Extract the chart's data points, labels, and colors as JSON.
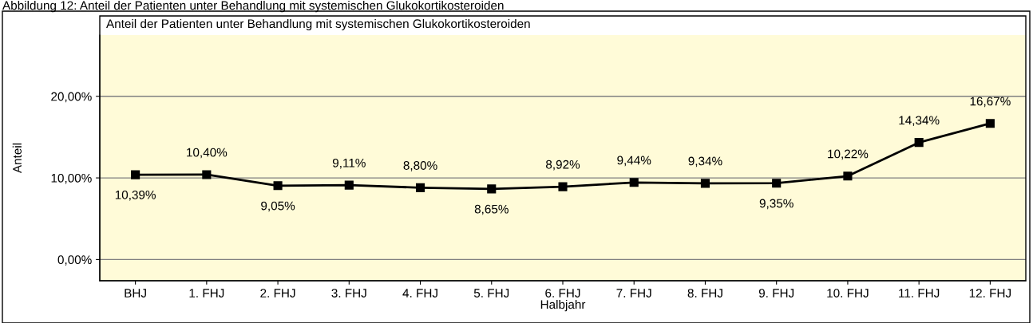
{
  "chart_data": {
    "type": "line",
    "title": "Anteil der Patienten unter Behandlung mit systemischen Glukokortikosteroiden",
    "annotations": [
      "Abbildung 12: Anteil der Patienten unter Behandlung mit systemischen Glukokortikosteroiden"
    ],
    "xlabel": "Halbjahr",
    "ylabel": "Anteil",
    "categories": [
      "BHJ",
      "1. FHJ",
      "2. FHJ",
      "3. FHJ",
      "4. FHJ",
      "5. FHJ",
      "6. FHJ",
      "7. FHJ",
      "8. FHJ",
      "9. FHJ",
      "10. FHJ",
      "11. FHJ",
      "12. FHJ"
    ],
    "series": [
      {
        "color": "#000000",
        "values": [
          10.39,
          10.4,
          9.05,
          9.11,
          8.8,
          8.65,
          8.92,
          9.44,
          9.34,
          9.35,
          10.22,
          14.34,
          16.67
        ],
        "value_labels": [
          "10,39%",
          "10,40%",
          "9,05%",
          "9,11%",
          "8,80%",
          "8,65%",
          "8,92%",
          "9,44%",
          "9,34%",
          "9,35%",
          "10,22%",
          "14,34%",
          "16,67%"
        ]
      }
    ],
    "ylim": [
      -2.6,
      27.5
    ],
    "yticks": [
      {
        "value": 0,
        "label": "0,00%"
      },
      {
        "value": 10,
        "label": "10,00%"
      },
      {
        "value": 20,
        "label": "20,00%"
      }
    ],
    "grid": "y",
    "marker": "square",
    "line_style": "solid",
    "legend": false
  }
}
